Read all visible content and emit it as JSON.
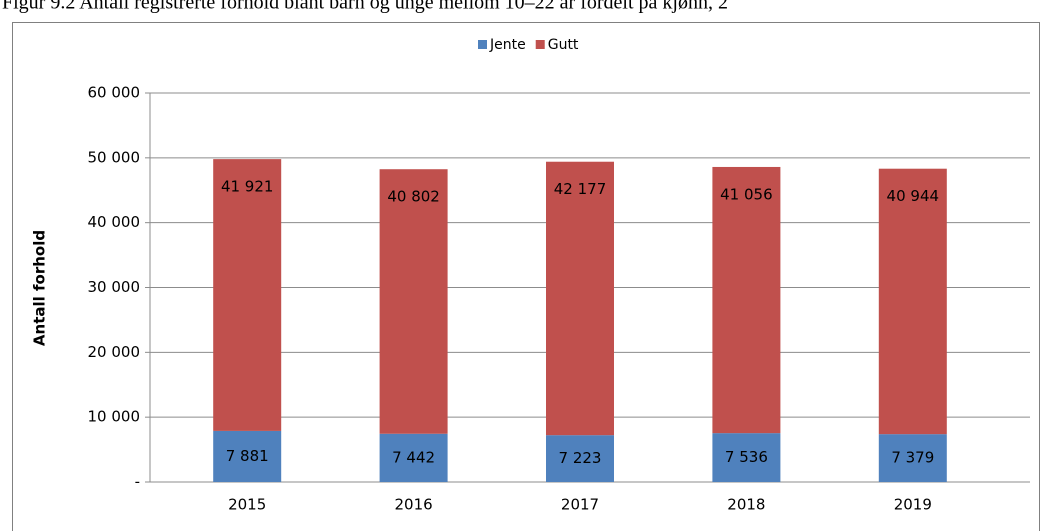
{
  "chart_data": {
    "type": "bar",
    "stacked": true,
    "title": "Figur 9.2 Antall registrerte forhold blant barn og unge mellom 10–22 år fordelt på kjønn, 2",
    "y_label": "Antall forhold",
    "categories": [
      "2015",
      "2016",
      "2017",
      "2018",
      "2019"
    ],
    "series": [
      {
        "name": "Jente",
        "color": "#4f81bd",
        "values": [
          7881,
          7442,
          7223,
          7536,
          7379
        ],
        "value_labels": [
          "7 881",
          "7 442",
          "7 223",
          "7 536",
          "7 379"
        ]
      },
      {
        "name": "Gutt",
        "color": "#c0504d",
        "values": [
          41921,
          40802,
          42177,
          41056,
          40944
        ],
        "value_labels": [
          "41 921",
          "40 802",
          "42 177",
          "41 056",
          "40 944"
        ]
      }
    ],
    "ylim": [
      0,
      60000
    ],
    "yticks": [
      {
        "value": 0,
        "label": "-"
      },
      {
        "value": 10000,
        "label": "10 000"
      },
      {
        "value": 20000,
        "label": "20 000"
      },
      {
        "value": 30000,
        "label": "30 000"
      },
      {
        "value": 40000,
        "label": "40 000"
      },
      {
        "value": 50000,
        "label": "50 000"
      },
      {
        "value": 60000,
        "label": "60 000"
      }
    ],
    "grid": true,
    "legend": "top"
  }
}
